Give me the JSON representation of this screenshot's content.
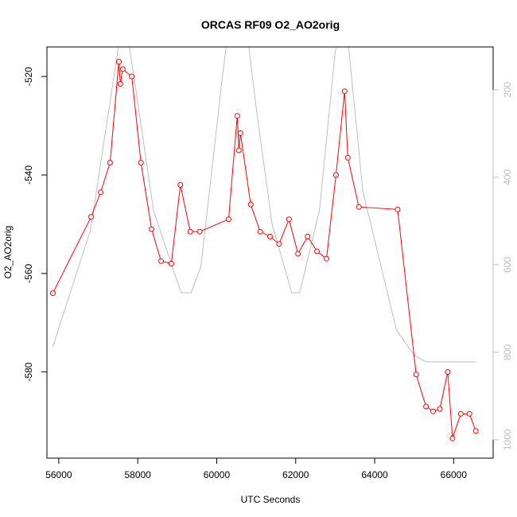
{
  "chart_data": {
    "type": "line",
    "title": "ORCAS RF09 O2_AO2orig",
    "xlabel": "UTC Seconds",
    "ylabel": "O2_AO2orig",
    "xlim": [
      55700,
      67000
    ],
    "ylim": [
      -597.5,
      -514
    ],
    "y2lim": [
      102,
      1042
    ],
    "x_ticks": [
      56000,
      58000,
      60000,
      62000,
      64000,
      66000
    ],
    "y_ticks": [
      -520,
      -540,
      -560,
      -580
    ],
    "y2_ticks": [
      200,
      400,
      600,
      800,
      1000
    ],
    "grid": false,
    "series": [
      {
        "color": "#ff0000",
        "style": "line+points",
        "x": [
          55850,
          56820,
          57060,
          57300,
          57520,
          57560,
          57620,
          57850,
          58080,
          58350,
          58590,
          58850,
          59080,
          59330,
          59570,
          60300,
          60520,
          60560,
          60600,
          60860,
          61100,
          61350,
          61580,
          61830,
          62060,
          62300,
          62540,
          62780,
          63020,
          63240,
          63320,
          63600,
          64580,
          65050,
          65300,
          65480,
          65650,
          65850,
          65970,
          66180,
          66400,
          66560
        ],
        "y": [
          -564,
          -548.5,
          -543.5,
          -537.5,
          -517,
          -521.5,
          -518.5,
          -520,
          -537.5,
          -551,
          -557.5,
          -558,
          -542,
          -551.5,
          -551.5,
          -549,
          -528,
          -535,
          -531.5,
          -546,
          -551.5,
          -552.5,
          -554,
          -549,
          -556,
          -552.5,
          -555.5,
          -557,
          -540,
          -523,
          -536.5,
          -546.5,
          -547,
          -580.5,
          -587,
          -588,
          -587.5,
          -580,
          -593.5,
          -588.5,
          -588.5,
          -592
        ]
      },
      {
        "axis": "right",
        "color": "#bebebe",
        "style": "line",
        "x": [
          55850,
          56800,
          57500,
          57650,
          57900,
          58400,
          59100,
          59350,
          59600,
          60150,
          60350,
          60700,
          61000,
          61400,
          61900,
          62100,
          62600,
          63000,
          63250,
          63700,
          64550,
          65000,
          65300,
          66560
        ],
        "y": [
          787,
          522,
          108,
          20,
          168,
          476,
          664,
          664,
          604,
          166,
          20,
          20,
          241,
          506,
          664,
          664,
          476,
          115,
          20,
          432,
          749,
          807,
          822,
          822
        ]
      }
    ]
  }
}
